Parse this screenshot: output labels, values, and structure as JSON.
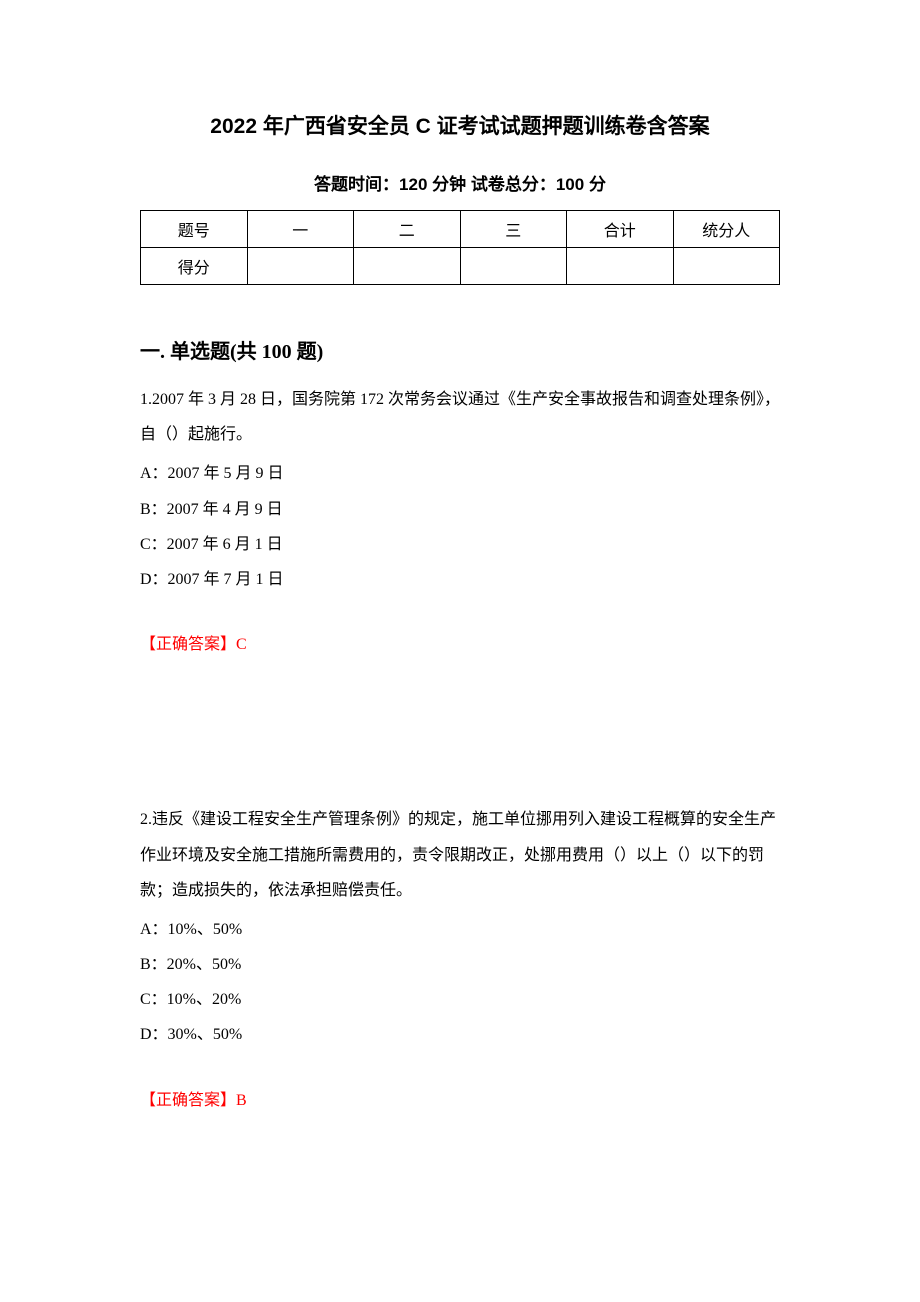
{
  "title": "2022 年广西省安全员 C 证考试试题押题训练卷含答案",
  "subtitle": "答题时间：120 分钟   试卷总分：100 分",
  "score_table": {
    "headers": [
      "题号",
      "一",
      "二",
      "三",
      "合计",
      "统分人"
    ],
    "row_label": "得分"
  },
  "section_heading": "一. 单选题(共 100 题)",
  "questions": [
    {
      "number": "1.",
      "text": "2007 年 3 月 28 日，国务院第 172 次常务会议通过《生产安全事故报告和调查处理条例》，自（）起施行。",
      "options": [
        "A：2007 年 5 月 9 日",
        "B：2007 年 4 月 9 日",
        "C：2007 年 6 月 1 日",
        "D：2007 年 7 月 1 日"
      ],
      "answer_label": "【正确答案】",
      "answer_value": "C"
    },
    {
      "number": "2.",
      "text": "违反《建设工程安全生产管理条例》的规定，施工单位挪用列入建设工程概算的安全生产作业环境及安全施工措施所需费用的，责令限期改正，处挪用费用（）以上（）以下的罚款；造成损失的，依法承担赔偿责任。",
      "options": [
        "A：10%、50%",
        "B：20%、50%",
        "C：10%、20%",
        "D：30%、50%"
      ],
      "answer_label": "【正确答案】",
      "answer_value": "B"
    }
  ],
  "colors": {
    "text": "#000000",
    "answer": "#ff0000",
    "background": "#ffffff",
    "border": "#000000"
  }
}
